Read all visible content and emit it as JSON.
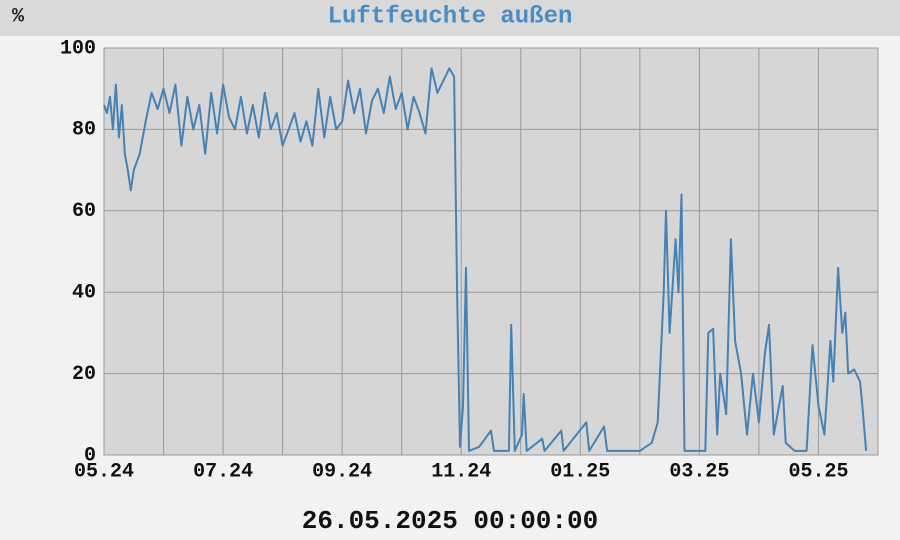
{
  "chart_data": {
    "type": "line",
    "title": "Luftfeuchte außen",
    "y_unit": "%",
    "timestamp": "26.05.2025 00:00:00",
    "xlim": [
      0,
      13
    ],
    "xticks": [
      {
        "value": 0,
        "label": "05.24"
      },
      {
        "value": 2,
        "label": "07.24"
      },
      {
        "value": 4,
        "label": "09.24"
      },
      {
        "value": 6,
        "label": "11.24"
      },
      {
        "value": 8,
        "label": "01.25"
      },
      {
        "value": 10,
        "label": "03.25"
      },
      {
        "value": 12,
        "label": "05.25"
      }
    ],
    "xgrid": [
      0,
      1,
      2,
      3,
      4,
      5,
      6,
      7,
      8,
      9,
      10,
      11,
      12,
      13
    ],
    "ylim": [
      0,
      100
    ],
    "yticks": [
      0,
      20,
      40,
      60,
      80,
      100
    ],
    "grid": true,
    "series": [
      {
        "color": "#4682b4",
        "x": [
          0.0,
          0.05,
          0.1,
          0.15,
          0.2,
          0.25,
          0.3,
          0.35,
          0.4,
          0.45,
          0.5,
          0.6,
          0.7,
          0.8,
          0.9,
          1.0,
          1.1,
          1.2,
          1.3,
          1.4,
          1.5,
          1.6,
          1.7,
          1.8,
          1.9,
          2.0,
          2.1,
          2.2,
          2.3,
          2.4,
          2.5,
          2.6,
          2.7,
          2.8,
          2.9,
          3.0,
          3.1,
          3.2,
          3.3,
          3.4,
          3.5,
          3.6,
          3.7,
          3.8,
          3.9,
          4.0,
          4.1,
          4.2,
          4.3,
          4.4,
          4.5,
          4.6,
          4.7,
          4.8,
          4.9,
          5.0,
          5.1,
          5.2,
          5.3,
          5.4,
          5.5,
          5.6,
          5.7,
          5.8,
          5.88,
          5.93,
          5.98,
          6.03,
          6.08,
          6.13,
          6.3,
          6.5,
          6.55,
          6.8,
          6.84,
          6.9,
          7.02,
          7.05,
          7.1,
          7.36,
          7.4,
          7.68,
          7.72,
          8.1,
          8.15,
          8.4,
          8.45,
          9.0,
          9.2,
          9.3,
          9.4,
          9.44,
          9.5,
          9.6,
          9.65,
          9.7,
          9.75,
          10.1,
          10.15,
          10.23,
          10.3,
          10.35,
          10.45,
          10.53,
          10.6,
          10.7,
          10.8,
          10.9,
          11.0,
          11.1,
          11.17,
          11.25,
          11.4,
          11.45,
          11.6,
          11.8,
          11.9,
          12.0,
          12.1,
          12.2,
          12.25,
          12.33,
          12.4,
          12.45,
          12.5,
          12.6,
          12.7,
          12.75,
          12.8
        ],
        "values": [
          86,
          84,
          88,
          80,
          91,
          78,
          86,
          74,
          70,
          65,
          70,
          74,
          82,
          89,
          85,
          90,
          84,
          91,
          76,
          88,
          80,
          86,
          74,
          89,
          79,
          91,
          83,
          80,
          88,
          79,
          86,
          78,
          89,
          80,
          84,
          76,
          80,
          84,
          77,
          82,
          76,
          90,
          78,
          88,
          80,
          82,
          92,
          84,
          90,
          79,
          87,
          90,
          84,
          93,
          85,
          89,
          80,
          88,
          84,
          79,
          95,
          89,
          92,
          95,
          93,
          40,
          2,
          12,
          46,
          1,
          2,
          6,
          1,
          1,
          32,
          1,
          5,
          15,
          1,
          4,
          1,
          6,
          1,
          8,
          1,
          7,
          1,
          1,
          3,
          8,
          40,
          60,
          30,
          53,
          40,
          64,
          1,
          1,
          30,
          31,
          5,
          20,
          10,
          53,
          28,
          20,
          5,
          20,
          8,
          25,
          32,
          5,
          17,
          3,
          1,
          1,
          27,
          12,
          5,
          28,
          18,
          46,
          30,
          35,
          20,
          21,
          18,
          10,
          1
        ]
      }
    ]
  }
}
